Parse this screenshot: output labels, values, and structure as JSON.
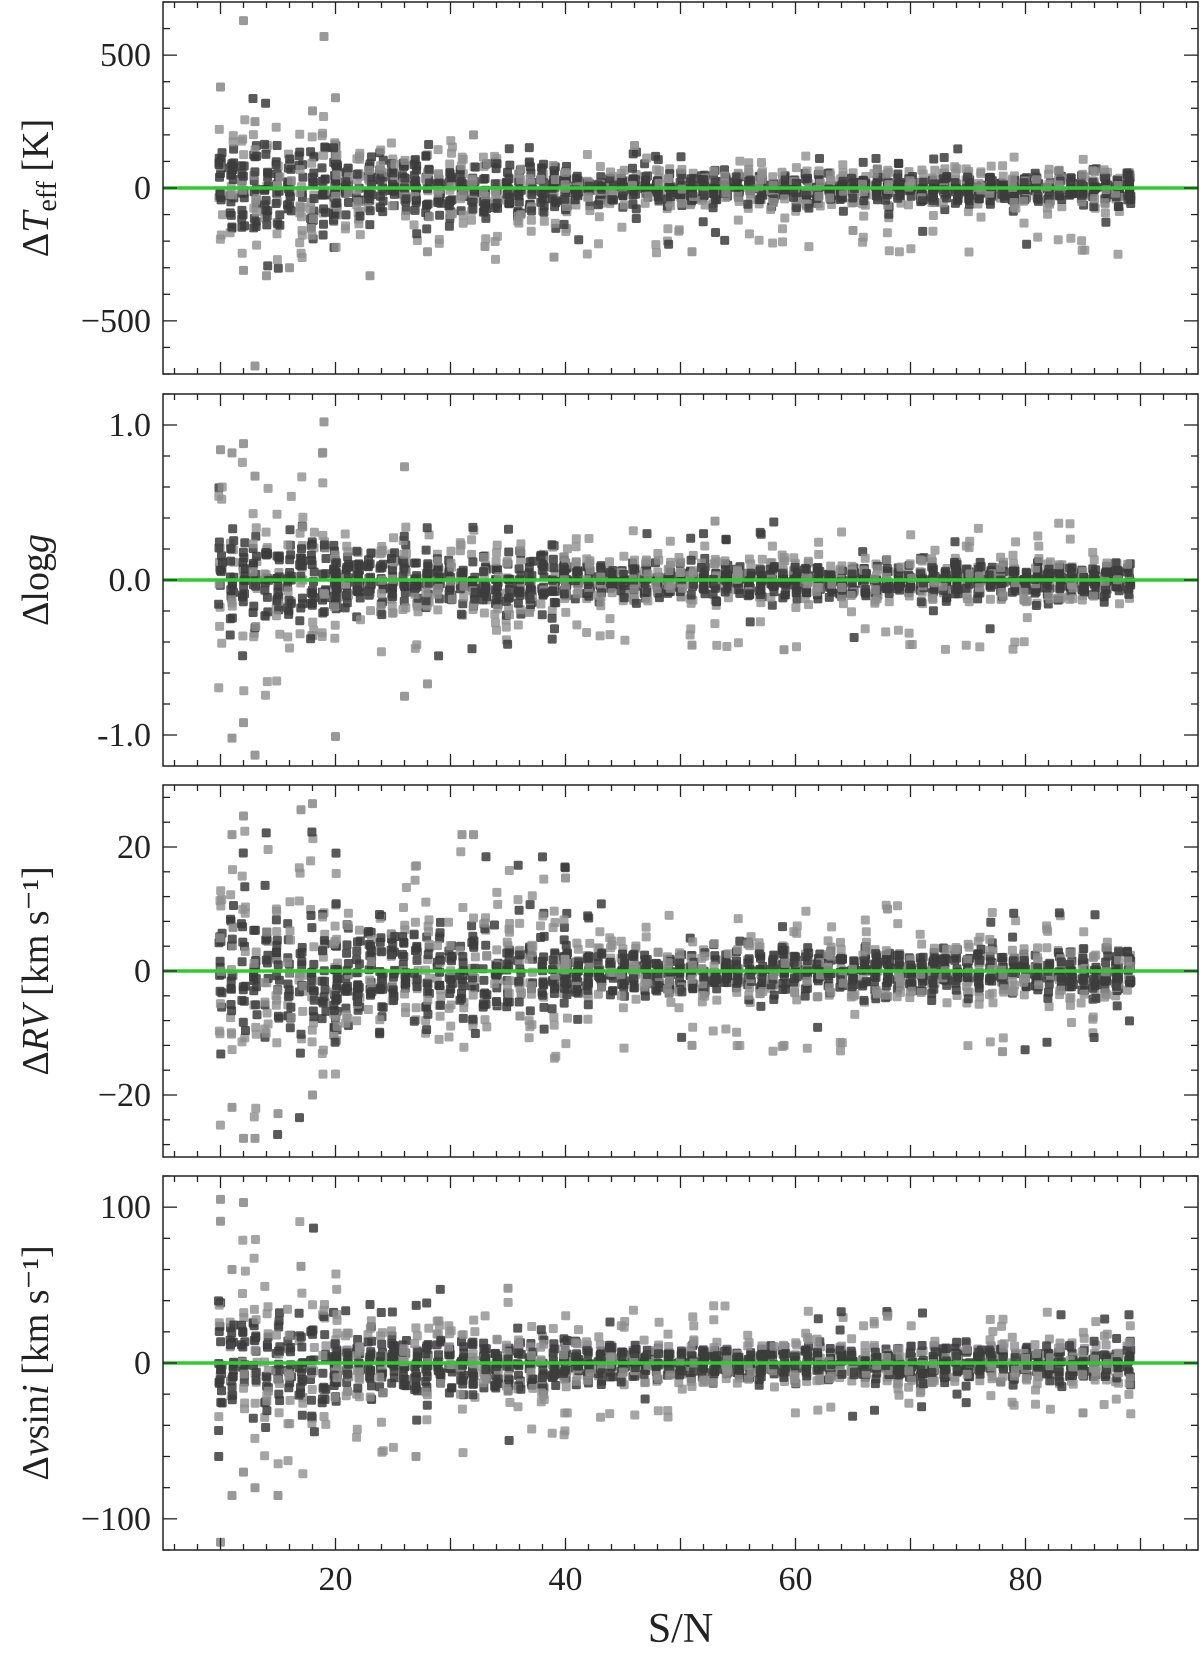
{
  "chart_data": [
    {
      "type": "scatter",
      "ylabel_parts": [
        "Δ",
        "T",
        "eff",
        "[K]"
      ],
      "ylim": [
        -700,
        700
      ],
      "yticks": [
        500,
        0,
        -500
      ],
      "ytick_labels": [
        "500",
        "0",
        "−500"
      ],
      "reference_line_y": 0,
      "scatter_ranges": [
        {
          "x": [
            10,
            20
          ],
          "y_core": [
            -200,
            200
          ],
          "y_outer": [
            -350,
            380
          ]
        },
        {
          "x": [
            20,
            40
          ],
          "y_core": [
            -120,
            120
          ],
          "y_outer": [
            -270,
            190
          ]
        },
        {
          "x": [
            40,
            90
          ],
          "y_core": [
            -60,
            60
          ],
          "y_outer": [
            -250,
            150
          ]
        }
      ],
      "outliers": [
        [
          12,
          630
        ],
        [
          19,
          570
        ],
        [
          20,
          340
        ],
        [
          13,
          250
        ],
        [
          18,
          290
        ],
        [
          10,
          380
        ],
        [
          12,
          -310
        ],
        [
          14,
          -330
        ],
        [
          16,
          -300
        ],
        [
          23,
          -330
        ],
        [
          33,
          -220
        ],
        [
          39,
          -260
        ],
        [
          51,
          -240
        ],
        [
          65,
          -160
        ],
        [
          13,
          -670
        ],
        [
          46,
          160
        ],
        [
          28,
          -240
        ],
        [
          32,
          200
        ]
      ]
    },
    {
      "type": "scatter",
      "ylabel_parts": [
        "Δ",
        "log",
        "g",
        ""
      ],
      "ylim": [
        -1.2,
        1.2
      ],
      "yticks": [
        1.0,
        0.0,
        -1.0
      ],
      "ytick_labels": [
        "1.0",
        "0.0",
        "-1.0"
      ],
      "reference_line_y": 0,
      "scatter_ranges": [
        {
          "x": [
            10,
            20
          ],
          "y_core": [
            -0.35,
            0.35
          ],
          "y_outer": [
            -0.75,
            0.85
          ]
        },
        {
          "x": [
            20,
            40
          ],
          "y_core": [
            -0.2,
            0.2
          ],
          "y_outer": [
            -0.5,
            0.4
          ]
        },
        {
          "x": [
            40,
            90
          ],
          "y_core": [
            -0.12,
            0.12
          ],
          "y_outer": [
            -0.45,
            0.38
          ]
        }
      ],
      "outliers": [
        [
          19,
          1.02
        ],
        [
          26,
          0.73
        ],
        [
          12,
          0.88
        ],
        [
          11,
          0.82
        ],
        [
          10,
          0.84
        ],
        [
          13,
          0.67
        ],
        [
          12,
          -0.92
        ],
        [
          13,
          -1.13
        ],
        [
          20,
          -1.01
        ],
        [
          11,
          -1.02
        ],
        [
          26,
          -0.75
        ],
        [
          28,
          -0.67
        ],
        [
          59,
          -0.45
        ],
        [
          53,
          0.38
        ],
        [
          51,
          -0.42
        ]
      ]
    },
    {
      "type": "scatter",
      "ylabel_parts": [
        "Δ",
        "RV",
        "",
        "[km s⁻¹]"
      ],
      "ylim": [
        -30,
        30
      ],
      "yticks": [
        20,
        0,
        -20
      ],
      "ytick_labels": [
        "20",
        "0",
        "−20"
      ],
      "reference_line_y": 0,
      "scatter_ranges": [
        {
          "x": [
            10,
            20
          ],
          "y_core": [
            -12,
            12
          ],
          "y_outer": [
            -27,
            26
          ]
        },
        {
          "x": [
            20,
            40
          ],
          "y_core": [
            -8,
            8
          ],
          "y_outer": [
            -15,
            22
          ]
        },
        {
          "x": [
            40,
            90
          ],
          "y_core": [
            -4,
            4
          ],
          "y_outer": [
            -13,
            11
          ]
        }
      ],
      "outliers": [
        [
          12,
          25
        ],
        [
          17,
          26
        ],
        [
          18,
          27
        ],
        [
          11,
          22
        ],
        [
          31,
          22
        ],
        [
          32,
          22
        ],
        [
          12,
          -27
        ],
        [
          13,
          -27
        ],
        [
          11,
          -22
        ],
        [
          15,
          -23
        ],
        [
          18,
          -20
        ],
        [
          40,
          15
        ],
        [
          59,
          -12
        ],
        [
          78,
          -13
        ],
        [
          51,
          -12
        ],
        [
          68,
          10
        ]
      ]
    },
    {
      "type": "scatter",
      "ylabel_parts": [
        "Δ",
        "v",
        "sin",
        "i"
      ],
      "ylabel_unit": "[km s⁻¹]",
      "ylim": [
        -120,
        120
      ],
      "yticks": [
        100,
        0,
        -100
      ],
      "ytick_labels": [
        "100",
        "0",
        "−100"
      ],
      "reference_line_y": 0,
      "scatter_ranges": [
        {
          "x": [
            10,
            20
          ],
          "y_core": [
            -35,
            35
          ],
          "y_outer": [
            -85,
            105
          ]
        },
        {
          "x": [
            20,
            40
          ],
          "y_core": [
            -20,
            20
          ],
          "y_outer": [
            -60,
            48
          ]
        },
        {
          "x": [
            40,
            90
          ],
          "y_core": [
            -12,
            12
          ],
          "y_outer": [
            -35,
            38
          ]
        }
      ],
      "outliers": [
        [
          10,
          105
        ],
        [
          10,
          91
        ],
        [
          12,
          103
        ],
        [
          11,
          60
        ],
        [
          17,
          62
        ],
        [
          10,
          -115
        ],
        [
          11,
          -85
        ],
        [
          13,
          -80
        ],
        [
          15,
          -85
        ],
        [
          12,
          -70
        ],
        [
          27,
          -60
        ],
        [
          35,
          48
        ],
        [
          68,
          30
        ],
        [
          85,
          -32
        ]
      ]
    }
  ],
  "x_axis": {
    "label": "S/N",
    "xlim": [
      5,
      95
    ],
    "xticks": [
      20,
      40,
      60,
      80
    ],
    "xtick_labels": [
      "20",
      "40",
      "60",
      "80"
    ],
    "minor_step": 2
  },
  "colors": {
    "point_dark": "#3c3c3c",
    "point_light": "#8e8e8e",
    "zero_line": "#2ecc2e",
    "frame": "#222222"
  }
}
